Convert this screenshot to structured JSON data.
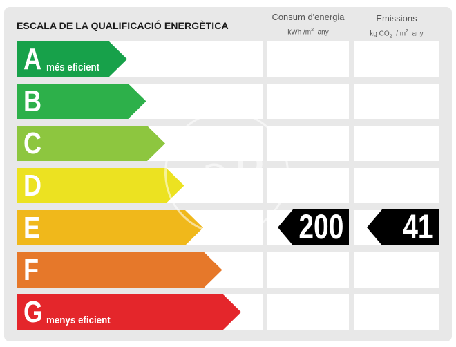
{
  "header": {
    "title": "ESCALA DE LA QUALIFICACIÓ ENERGÈTICA",
    "energy_col": {
      "line1": "Consum d'energia",
      "unit_a": "kWh /m",
      "unit_sup": "2",
      "unit_b": "any"
    },
    "emissions_col": {
      "line1": "Emissions",
      "unit_a": "kg CO",
      "unit_sub": "2",
      "unit_mid": "/ m",
      "unit_sup": "2",
      "unit_b": "any"
    }
  },
  "ratings": [
    {
      "letter": "A",
      "sublabel": "més eficient",
      "color": "#17a14a"
    },
    {
      "letter": "B",
      "sublabel": "",
      "color": "#2db04a"
    },
    {
      "letter": "C",
      "sublabel": "",
      "color": "#8dc63f"
    },
    {
      "letter": "D",
      "sublabel": "",
      "color": "#ece221"
    },
    {
      "letter": "E",
      "sublabel": "",
      "color": "#f0b81b"
    },
    {
      "letter": "F",
      "sublabel": "",
      "color": "#e6782a"
    },
    {
      "letter": "G",
      "sublabel": "menys eficient",
      "color": "#e4262b"
    }
  ],
  "current": {
    "rating": "E",
    "energy_value": "200",
    "emissions_value": "41"
  },
  "watermark": {
    "icon": "ap-logo-icon",
    "text": "aP"
  }
}
